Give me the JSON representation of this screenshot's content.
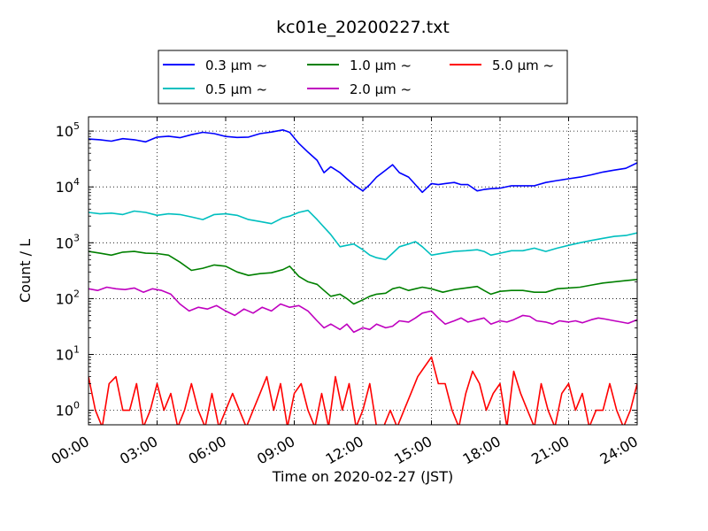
{
  "chart_data": {
    "type": "line",
    "title": "kc01e_20200227.txt",
    "xlabel": "Time on 2020-02-27 (JST)",
    "ylabel": "Count / L",
    "yscale": "log",
    "xlim": [
      "00:00",
      "24:00"
    ],
    "ylim": [
      0.55,
      180000
    ],
    "x_ticks": [
      "00:00",
      "03:00",
      "06:00",
      "09:00",
      "12:00",
      "15:00",
      "18:00",
      "21:00",
      "24:00"
    ],
    "y_ticks": [
      {
        "value": 1,
        "label": "10",
        "exp": "0"
      },
      {
        "value": 10,
        "label": "10",
        "exp": "1"
      },
      {
        "value": 100,
        "label": "10",
        "exp": "2"
      },
      {
        "value": 1000,
        "label": "10",
        "exp": "3"
      },
      {
        "value": 10000,
        "label": "10",
        "exp": "4"
      },
      {
        "value": 100000,
        "label": "10",
        "exp": "5"
      }
    ],
    "grid": true,
    "legend_position": "top",
    "series": [
      {
        "name": "0.3 μm ~",
        "color": "#0000ff",
        "x_hours": [
          0,
          0.5,
          1,
          1.5,
          2,
          2.5,
          3,
          3.5,
          4,
          4.5,
          5,
          5.5,
          6,
          6.5,
          7,
          7.5,
          8,
          8.5,
          8.8,
          9.2,
          9.6,
          10,
          10.3,
          10.6,
          11,
          11.3,
          11.6,
          12,
          12.3,
          12.6,
          13,
          13.3,
          13.6,
          14,
          14.3,
          14.6,
          15,
          15.3,
          15.6,
          16,
          16.3,
          16.6,
          17,
          17.3,
          17.6,
          18,
          18.5,
          19,
          19.5,
          20,
          20.5,
          21,
          21.5,
          22,
          22.5,
          23,
          23.5,
          24
        ],
        "values": [
          72000,
          70000,
          66000,
          73000,
          70000,
          64000,
          78000,
          81000,
          76000,
          86000,
          95000,
          90000,
          80000,
          77000,
          78000,
          90000,
          96000,
          105000,
          95000,
          60000,
          42000,
          30000,
          18000,
          23000,
          18000,
          14000,
          11000,
          8500,
          11000,
          15000,
          20000,
          25000,
          18000,
          15000,
          11000,
          8000,
          11500,
          11000,
          11500,
          12000,
          11000,
          11000,
          8500,
          9000,
          9300,
          9500,
          10500,
          10500,
          10500,
          12000,
          13000,
          14000,
          15000,
          16500,
          18500,
          20000,
          21500,
          27000
        ]
      },
      {
        "name": "0.5 μm ~",
        "color": "#00bfbf",
        "x_hours": [
          0,
          0.5,
          1,
          1.5,
          2,
          2.5,
          3,
          3.5,
          4,
          4.5,
          5,
          5.5,
          6,
          6.5,
          7,
          7.5,
          8,
          8.5,
          8.8,
          9.2,
          9.6,
          10,
          10.3,
          10.6,
          11,
          11.3,
          11.6,
          12,
          12.3,
          12.6,
          13,
          13.3,
          13.6,
          14,
          14.3,
          14.6,
          15,
          15.5,
          16,
          16.5,
          17,
          17.3,
          17.6,
          18,
          18.5,
          19,
          19.5,
          20,
          20.5,
          21,
          21.5,
          22,
          22.5,
          23,
          23.5,
          24
        ],
        "values": [
          3500,
          3300,
          3400,
          3200,
          3700,
          3500,
          3100,
          3300,
          3200,
          2900,
          2600,
          3200,
          3300,
          3100,
          2600,
          2400,
          2200,
          2800,
          3000,
          3500,
          3800,
          2600,
          1900,
          1400,
          850,
          900,
          950,
          750,
          600,
          540,
          500,
          650,
          850,
          950,
          1050,
          850,
          600,
          650,
          700,
          720,
          750,
          700,
          600,
          650,
          720,
          720,
          800,
          700,
          800,
          900,
          1000,
          1100,
          1200,
          1300,
          1350,
          1500
        ]
      },
      {
        "name": "1.0 μm ~",
        "color": "#008000",
        "x_hours": [
          0,
          0.5,
          1,
          1.5,
          2,
          2.5,
          3,
          3.5,
          4,
          4.5,
          5,
          5.5,
          6,
          6.5,
          7,
          7.5,
          8,
          8.5,
          8.8,
          9.2,
          9.6,
          10,
          10.3,
          10.6,
          11,
          11.3,
          11.6,
          12,
          12.3,
          12.6,
          13,
          13.3,
          13.6,
          14,
          14.3,
          14.6,
          15,
          15.5,
          16,
          16.5,
          17,
          17.3,
          17.6,
          18,
          18.5,
          19,
          19.5,
          20,
          20.5,
          21,
          21.5,
          22,
          22.5,
          23,
          23.5,
          24
        ],
        "values": [
          700,
          650,
          600,
          680,
          700,
          650,
          640,
          600,
          450,
          320,
          350,
          400,
          380,
          300,
          260,
          280,
          290,
          330,
          380,
          250,
          200,
          180,
          140,
          110,
          120,
          100,
          80,
          95,
          110,
          120,
          125,
          150,
          160,
          140,
          150,
          160,
          150,
          130,
          145,
          155,
          165,
          140,
          120,
          135,
          140,
          140,
          130,
          130,
          150,
          155,
          160,
          175,
          190,
          200,
          210,
          220
        ]
      },
      {
        "name": "2.0 μm ~",
        "color": "#bf00bf",
        "x_hours": [
          0,
          0.4,
          0.8,
          1.2,
          1.6,
          2,
          2.4,
          2.8,
          3.2,
          3.6,
          4,
          4.4,
          4.8,
          5.2,
          5.6,
          6,
          6.4,
          6.8,
          7.2,
          7.6,
          8,
          8.4,
          8.8,
          9.2,
          9.6,
          10,
          10.3,
          10.6,
          11,
          11.3,
          11.6,
          12,
          12.3,
          12.6,
          13,
          13.3,
          13.6,
          14,
          14.3,
          14.6,
          15,
          15.3,
          15.6,
          16,
          16.3,
          16.6,
          17,
          17.3,
          17.6,
          18,
          18.3,
          18.6,
          19,
          19.3,
          19.6,
          20,
          20.3,
          20.6,
          21,
          21.3,
          21.6,
          22,
          22.3,
          22.6,
          23,
          23.3,
          23.6,
          24
        ],
        "values": [
          150,
          140,
          160,
          150,
          145,
          155,
          130,
          150,
          140,
          120,
          80,
          60,
          70,
          65,
          75,
          60,
          50,
          65,
          55,
          70,
          60,
          80,
          70,
          75,
          60,
          40,
          30,
          35,
          28,
          35,
          25,
          30,
          28,
          35,
          30,
          32,
          40,
          38,
          45,
          55,
          60,
          45,
          35,
          40,
          45,
          38,
          42,
          45,
          35,
          40,
          38,
          42,
          50,
          48,
          40,
          38,
          35,
          40,
          38,
          40,
          37,
          42,
          45,
          43,
          40,
          38,
          36,
          42
        ]
      },
      {
        "name": "5.0 μm ~",
        "color": "#ff0000",
        "x_hours": [
          0,
          0.3,
          0.6,
          0.9,
          1.2,
          1.5,
          1.8,
          2.1,
          2.4,
          2.7,
          3,
          3.3,
          3.6,
          3.9,
          4.2,
          4.5,
          4.8,
          5.1,
          5.4,
          5.7,
          6,
          6.3,
          6.6,
          6.9,
          7.2,
          7.5,
          7.8,
          8.1,
          8.4,
          8.7,
          9,
          9.3,
          9.6,
          9.9,
          10.2,
          10.5,
          10.8,
          11.1,
          11.4,
          11.7,
          12,
          12.3,
          12.6,
          12.9,
          13.2,
          13.5,
          13.8,
          14.1,
          14.4,
          14.7,
          15,
          15.3,
          15.6,
          15.9,
          16.2,
          16.5,
          16.8,
          17.1,
          17.4,
          17.7,
          18,
          18.3,
          18.6,
          18.9,
          19.2,
          19.5,
          19.8,
          20.1,
          20.4,
          20.7,
          21,
          21.3,
          21.6,
          21.9,
          22.2,
          22.5,
          22.8,
          23.1,
          23.4,
          23.7,
          24
        ],
        "values": [
          4,
          1,
          0.5,
          3,
          4,
          1,
          1,
          3,
          0.5,
          1,
          3,
          1,
          2,
          0.5,
          1,
          3,
          1,
          0.5,
          2,
          0.5,
          1,
          2,
          1,
          0.5,
          1,
          2,
          4,
          1,
          3,
          0.5,
          2,
          3,
          1,
          0.5,
          2,
          0.5,
          4,
          1,
          3,
          0.5,
          1,
          3,
          0.5,
          0.5,
          1,
          0.5,
          1,
          2,
          4,
          6,
          9,
          3,
          3,
          1,
          0.5,
          2,
          5,
          3,
          1,
          2,
          3,
          0.5,
          5,
          2,
          1,
          0.5,
          3,
          1,
          0.5,
          2,
          3,
          1,
          2,
          0.5,
          1,
          1,
          3,
          1,
          0.5,
          1,
          3
        ]
      }
    ]
  }
}
